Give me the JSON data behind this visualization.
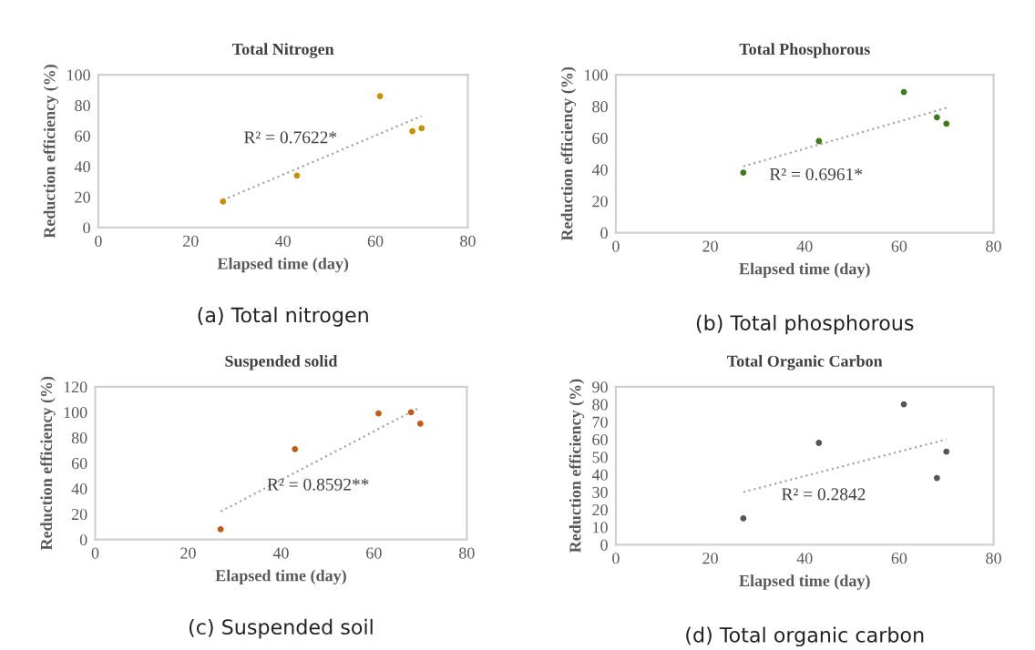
{
  "chart_data": [
    {
      "type": "scatter",
      "title": "Total Nitrogen",
      "xlabel": "Elapsed time (day)",
      "ylabel": "Reduction efficiency (%)",
      "xlim": [
        0,
        80
      ],
      "xticks": [
        0,
        20,
        40,
        60,
        80
      ],
      "ylim": [
        0,
        100
      ],
      "yticks": [
        0,
        20,
        40,
        60,
        80,
        100
      ],
      "grid": false,
      "legend": false,
      "series": [
        {
          "marker": "circle",
          "color": "#c89000",
          "x": [
            27,
            43,
            61,
            68,
            70
          ],
          "values": [
            17,
            34,
            86,
            63,
            65
          ]
        },
        {
          "type": "line",
          "line_style": "dotted",
          "color": "#a6a6a6",
          "x": [
            27,
            70
          ],
          "values": [
            18,
            73
          ]
        }
      ],
      "annotations": [
        "R² = 0.7622*",
        "(a) Total nitrogen"
      ]
    },
    {
      "type": "scatter",
      "title": "Total Phosphorous",
      "xlabel": "Elapsed time (day)",
      "ylabel": "Reduction efficiency (%)",
      "xlim": [
        0,
        80
      ],
      "xticks": [
        0,
        20,
        40,
        60,
        80
      ],
      "ylim": [
        0,
        100
      ],
      "yticks": [
        0,
        20,
        40,
        60,
        80,
        100
      ],
      "grid": false,
      "legend": false,
      "series": [
        {
          "marker": "circle",
          "color": "#3a7d1a",
          "x": [
            27,
            43,
            61,
            68,
            70
          ],
          "values": [
            38,
            58,
            89,
            73,
            69
          ]
        },
        {
          "type": "line",
          "line_style": "dotted",
          "color": "#a6a6a6",
          "x": [
            27,
            70
          ],
          "values": [
            42,
            79
          ]
        }
      ],
      "annotations": [
        "R² = 0.6961*",
        "(b) Total phosphorous"
      ]
    },
    {
      "type": "scatter",
      "title": "Suspended solid",
      "xlabel": "Elapsed time (day)",
      "ylabel": "Reduction efficiency (%)",
      "xlim": [
        0,
        80
      ],
      "xticks": [
        0,
        20,
        40,
        60,
        80
      ],
      "ylim": [
        0,
        120
      ],
      "yticks": [
        0,
        20,
        40,
        60,
        80,
        100,
        120
      ],
      "grid": false,
      "legend": false,
      "series": [
        {
          "marker": "circle",
          "color": "#c55a11",
          "x": [
            27,
            43,
            61,
            68,
            70
          ],
          "values": [
            8,
            71,
            99,
            100,
            91
          ]
        },
        {
          "type": "line",
          "line_style": "dotted",
          "color": "#a6a6a6",
          "x": [
            27,
            70
          ],
          "values": [
            22,
            104
          ]
        }
      ],
      "annotations": [
        "R² = 0.8592**",
        "(c) Suspended soil"
      ]
    },
    {
      "type": "scatter",
      "title": "Total Organic Carbon",
      "xlabel": "Elapsed time (day)",
      "ylabel": "Reduction efficiency (%)",
      "xlim": [
        0,
        80
      ],
      "xticks": [
        0,
        20,
        40,
        60,
        80
      ],
      "ylim": [
        0,
        90
      ],
      "yticks": [
        0,
        10,
        20,
        30,
        40,
        50,
        60,
        70,
        80,
        90
      ],
      "grid": false,
      "legend": false,
      "series": [
        {
          "marker": "circle",
          "color": "#555555",
          "x": [
            27,
            43,
            61,
            68,
            70
          ],
          "values": [
            15,
            58,
            80,
            38,
            53
          ]
        },
        {
          "type": "line",
          "line_style": "dotted",
          "color": "#a6a6a6",
          "x": [
            27,
            70
          ],
          "values": [
            30,
            60
          ]
        }
      ],
      "annotations": [
        "R² = 0.2842",
        "(d) Total organic carbon"
      ]
    }
  ]
}
